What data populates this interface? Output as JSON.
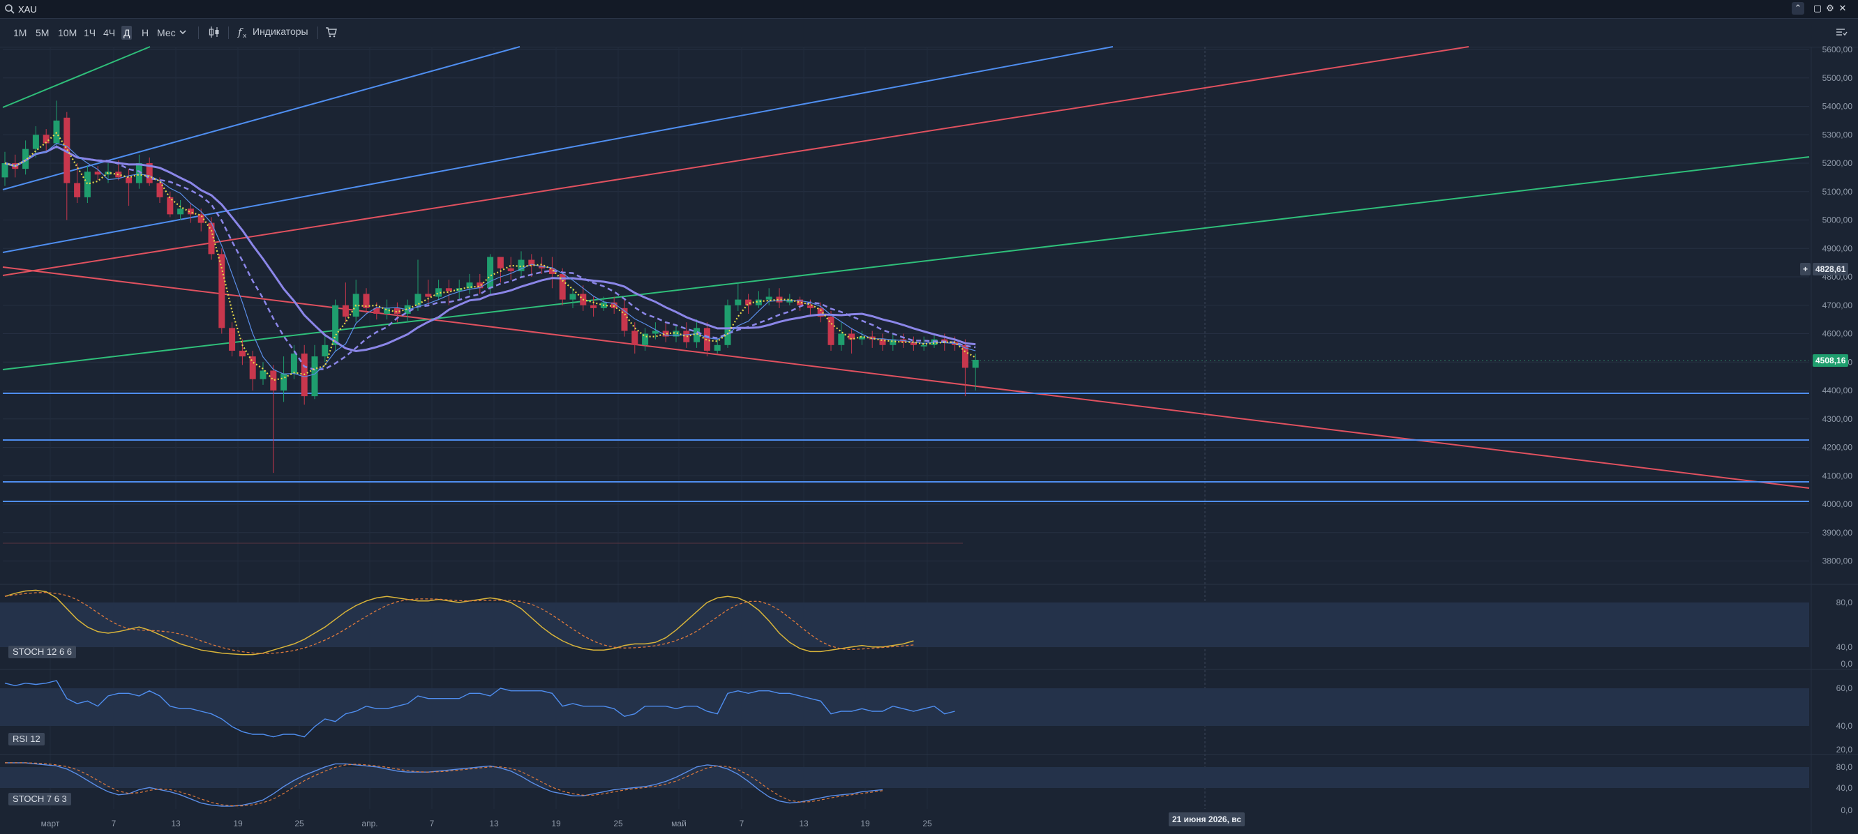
{
  "window": {
    "symbol": "XAU",
    "controls": [
      "chevron-up",
      "restore",
      "settings",
      "close"
    ]
  },
  "toolbar": {
    "timeframes": [
      "1М",
      "5М",
      "10М",
      "1Ч",
      "4Ч",
      "Д",
      "Н",
      "Мес"
    ],
    "active_timeframe": "Д",
    "indicators_label": "Индикаторы"
  },
  "price_axis": {
    "ticks": [
      "5600,00",
      "5500,00",
      "5400,00",
      "5300,00",
      "5200,00",
      "5100,00",
      "5000,00",
      "4900,00",
      "4800,00",
      "4700,00",
      "4600,00",
      "4500,00",
      "4400,00",
      "4300,00",
      "4200,00",
      "4100,00",
      "4000,00",
      "3900,00",
      "3800,00"
    ],
    "crosshair_price": "4828,61",
    "last_price": "4508,16"
  },
  "time_axis": {
    "labels": [
      "март",
      "7",
      "13",
      "19",
      "25",
      "апр.",
      "7",
      "13",
      "19",
      "25",
      "май",
      "7",
      "13",
      "19",
      "25"
    ],
    "crosshair_date": "21 июня 2026, вс"
  },
  "indicators": [
    {
      "name": "STOCH 12 6 6",
      "ticks": [
        "80,0",
        "40,0",
        "0,0"
      ]
    },
    {
      "name": "RSI 12",
      "ticks": [
        "60,0",
        "40,0",
        "20,0"
      ]
    },
    {
      "name": "STOCH 7 6 3",
      "ticks": [
        "80,0",
        "40,0",
        "0,0"
      ]
    }
  ],
  "colors": {
    "background": "#1b2433",
    "up_candle": "#1f9e6e",
    "down_candle": "#c8374d",
    "last_price_tag": "#1f9e6e",
    "blue_line": "#4f8ef0",
    "red_line": "#e0515f",
    "green_line": "#2fbf7a",
    "ma_purple": "#8b86e8",
    "stoch_main": "#d8b43a",
    "stoch_signal": "#e07a3c",
    "rsi": "#4f8ef0"
  }
}
